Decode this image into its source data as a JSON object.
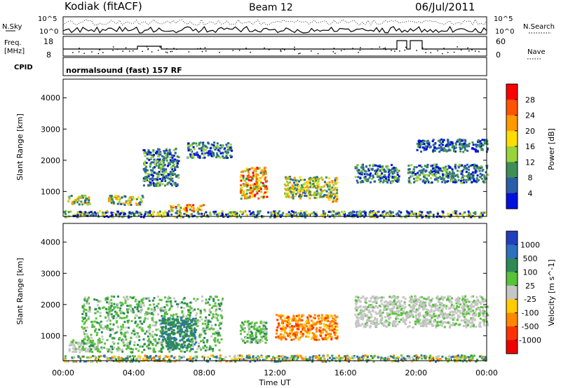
{
  "header": {
    "station": "Kodiak (fitACF)",
    "beam": "Beam 12",
    "date": "06/Jul/2011"
  },
  "aux": {
    "nsky_label": "N.Sky",
    "nsky_ticks": [
      "10^5",
      "10^0"
    ],
    "nsearch_label": "N.Search",
    "nsearch_ticks": [
      "10^5",
      "10^0"
    ],
    "freq_label_1": "Freq.",
    "freq_label_2": "[MHz]",
    "freq_ticks": [
      "18",
      "8"
    ],
    "nave_label": "Nave",
    "nave_ticks": [
      "60",
      "0"
    ],
    "cpid_label": "CPID",
    "cpid_text": "normalsound (fast) 157 RF"
  },
  "chart_data": [
    {
      "type": "heatmap",
      "name": "power",
      "ylabel": "Slant Range [km]",
      "xlabel": "Time UT",
      "x_ticks": [
        "00:00",
        "04:00",
        "08:00",
        "12:00",
        "16:00",
        "20:00",
        "00:00"
      ],
      "xlim_hours": [
        0,
        24
      ],
      "ylim": [
        200,
        4600
      ],
      "y_ticks": [
        1000,
        2000,
        3000,
        4000
      ],
      "colorbar": {
        "label": "Power [dB]",
        "tick_labels": [
          "28",
          "24",
          "20",
          "16",
          "12",
          "8",
          "4"
        ],
        "colors": [
          "#ff0000",
          "#ff5500",
          "#ff9900",
          "#ffdd00",
          "#9ad23a",
          "#3d8f55",
          "#2a5fa8",
          "#0011dd"
        ]
      },
      "echo_regions": [
        {
          "t": [
            0.0,
            24.0
          ],
          "r": [
            200,
            400
          ],
          "level": "mixed"
        },
        {
          "t": [
            0.2,
            1.5
          ],
          "r": [
            600,
            900
          ],
          "level": "high"
        },
        {
          "t": [
            2.5,
            4.5
          ],
          "r": [
            600,
            900
          ],
          "level": "high"
        },
        {
          "t": [
            4.5,
            6.5
          ],
          "r": [
            1200,
            2400
          ],
          "level": "mid"
        },
        {
          "t": [
            6.0,
            8.0
          ],
          "r": [
            400,
            600
          ],
          "level": "peak"
        },
        {
          "t": [
            7.0,
            9.5
          ],
          "r": [
            2100,
            2600
          ],
          "level": "mid"
        },
        {
          "t": [
            10.0,
            11.5
          ],
          "r": [
            800,
            1800
          ],
          "level": "peak"
        },
        {
          "t": [
            12.5,
            15.5
          ],
          "r": [
            800,
            1500
          ],
          "level": "high"
        },
        {
          "t": [
            15.0,
            15.5
          ],
          "r": [
            700,
            900
          ],
          "level": "peak"
        },
        {
          "t": [
            16.5,
            19.0
          ],
          "r": [
            1300,
            1900
          ],
          "level": "mid"
        },
        {
          "t": [
            19.5,
            24.0
          ],
          "r": [
            1300,
            1900
          ],
          "level": "mid"
        },
        {
          "t": [
            20.0,
            24.0
          ],
          "r": [
            2300,
            2700
          ],
          "level": "low"
        }
      ]
    },
    {
      "type": "heatmap",
      "name": "velocity",
      "ylabel": "Slant Range [km]",
      "xlabel": "Time UT",
      "x_ticks": [
        "00:00",
        "04:00",
        "08:00",
        "12:00",
        "16:00",
        "20:00",
        "00:00"
      ],
      "xlim_hours": [
        0,
        24
      ],
      "ylim": [
        200,
        4600
      ],
      "y_ticks": [
        1000,
        2000,
        3000,
        4000
      ],
      "colorbar": {
        "label": "Velocity [m s^-1]",
        "tick_labels": [
          "1000",
          "500",
          "100",
          "25",
          "-25",
          "-100",
          "-500",
          "-1000"
        ],
        "colors": [
          "#1f3fbf",
          "#2f6fbf",
          "#2d8a57",
          "#57c23a",
          "#c6c6c6",
          "#ffcc00",
          "#ff8800",
          "#ff3300",
          "#ee0000"
        ]
      },
      "echo_regions": [
        {
          "t": [
            0.0,
            24.0
          ],
          "r": [
            200,
            400
          ],
          "velocity": "mixed"
        },
        {
          "t": [
            0.3,
            2.0
          ],
          "r": [
            500,
            900
          ],
          "velocity": "ground"
        },
        {
          "t": [
            1.0,
            9.0
          ],
          "r": [
            500,
            2300
          ],
          "velocity": 100
        },
        {
          "t": [
            5.5,
            7.5
          ],
          "r": [
            600,
            1600
          ],
          "velocity": 500
        },
        {
          "t": [
            10.0,
            11.5
          ],
          "r": [
            800,
            1500
          ],
          "velocity": 100
        },
        {
          "t": [
            12.0,
            15.5
          ],
          "r": [
            900,
            1700
          ],
          "velocity": -500
        },
        {
          "t": [
            16.5,
            24.0
          ],
          "r": [
            1300,
            2300
          ],
          "velocity": "ground"
        }
      ]
    }
  ]
}
